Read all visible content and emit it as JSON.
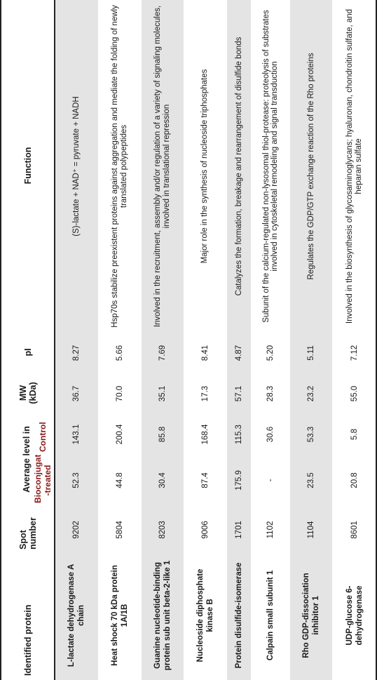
{
  "headers": {
    "protein": "Identified protein",
    "spot": "Spot number",
    "avg_level": "Average level in",
    "treated": "Bioconjugate -treated",
    "control": "Control",
    "mw": "MW (kDa)",
    "pi": "pI",
    "function": "Function"
  },
  "rows": [
    {
      "protein": "L-lactate dehydrogenase A chain",
      "spot": "9202",
      "treated": "52.3",
      "control": "143.1",
      "mw": "36.7",
      "pi": "8.27",
      "function": "(S)-lactate + NAD⁺ = pyruvate + NADH"
    },
    {
      "protein": "Heat shock 70 kDa protein 1A/1B",
      "spot": "5804",
      "treated": "44.8",
      "control": "200.4",
      "mw": "70.0",
      "pi": "5.66",
      "function": "Hsp70s stabilize preexistent proteins against aggregation and mediate the folding of newly translated polypeptides"
    },
    {
      "protein": "Guanine nucleotide-binding protein sub unit beta-2-like 1",
      "spot": "8203",
      "treated": "30.4",
      "control": "85.8",
      "mw": "35.1",
      "pi": "7.69",
      "function": "Involved in the recruitment, assembly and/or regulation of a variety of signaling molecules, involved in translational repression"
    },
    {
      "protein": "Nucleoside diphosphate kinase B",
      "spot": "9006",
      "treated": "87.4",
      "control": "168.4",
      "mw": "17.3",
      "pi": "8.41",
      "function": "Major role in the synthesis of nucleoside triphosphates"
    },
    {
      "protein": "Protein disulfide-isomerase",
      "spot": "1701",
      "treated": "175.9",
      "control": "115.3",
      "mw": "57.1",
      "pi": "4.87",
      "function": "Catalyzes the formation, breakage and rearrangement of disulfide bonds"
    },
    {
      "protein": "Calpain small subunit 1",
      "spot": "1102",
      "treated": "-",
      "control": "30.6",
      "mw": "28.3",
      "pi": "5.20",
      "function": "Subunit of the calcium-regulated non-lysosomal thiol-protease: proteolysis of substrates involved in cytoskeletal remodeling and signal transduction"
    },
    {
      "protein": "Rho GDP-dissociation inhibitor 1",
      "spot": "1104",
      "treated": "23.5",
      "control": "53.3",
      "mw": "23.2",
      "pi": "5.11",
      "function": "Regulates the GDP/GTP exchange reaction of the Rho proteins"
    },
    {
      "protein": "UDP-glucose 6-dehydrogenase",
      "spot": "8601",
      "treated": "20.8",
      "control": "5.8",
      "mw": "55.0",
      "pi": "7.12",
      "function": "Involved in the biosynthesis of glycosaminoglycans; hyaluronan, chondroitin sulfate, and heparan sulfate"
    }
  ]
}
